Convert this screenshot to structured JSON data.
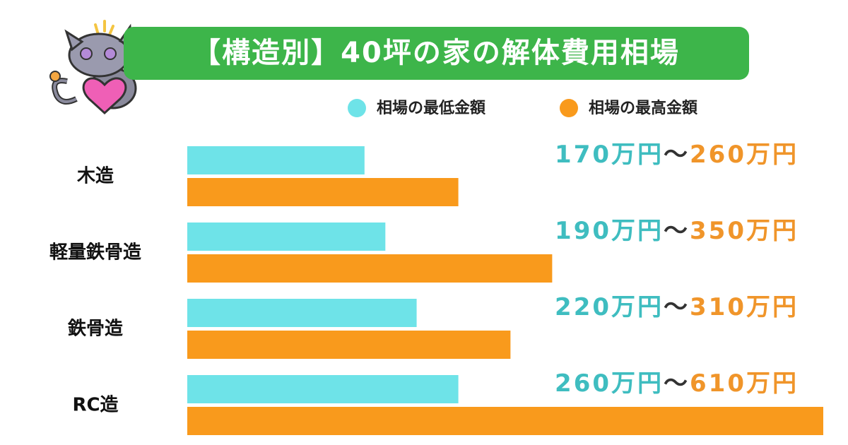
{
  "chart_data": {
    "type": "bar",
    "orientation": "horizontal",
    "title": "【構造別】40坪の家の解体費用相場",
    "categories": [
      "木造",
      "軽量鉄骨造",
      "鉄骨造",
      "RC造"
    ],
    "series": [
      {
        "name": "相場の最低金額",
        "color": "#6ee3e8",
        "label_color": "#3fbdc0",
        "values": [
          170,
          190,
          220,
          260
        ],
        "value_labels": [
          "170万円",
          "190万円",
          "220万円",
          "260万円"
        ]
      },
      {
        "name": "相場の最高金額",
        "color": "#f99a1c",
        "label_color": "#f0952a",
        "values": [
          260,
          350,
          310,
          610
        ],
        "value_labels": [
          "260万円",
          "350万円",
          "310万円",
          "610万円"
        ]
      }
    ],
    "range_separator": "〜",
    "title_color": "#3db54a"
  }
}
